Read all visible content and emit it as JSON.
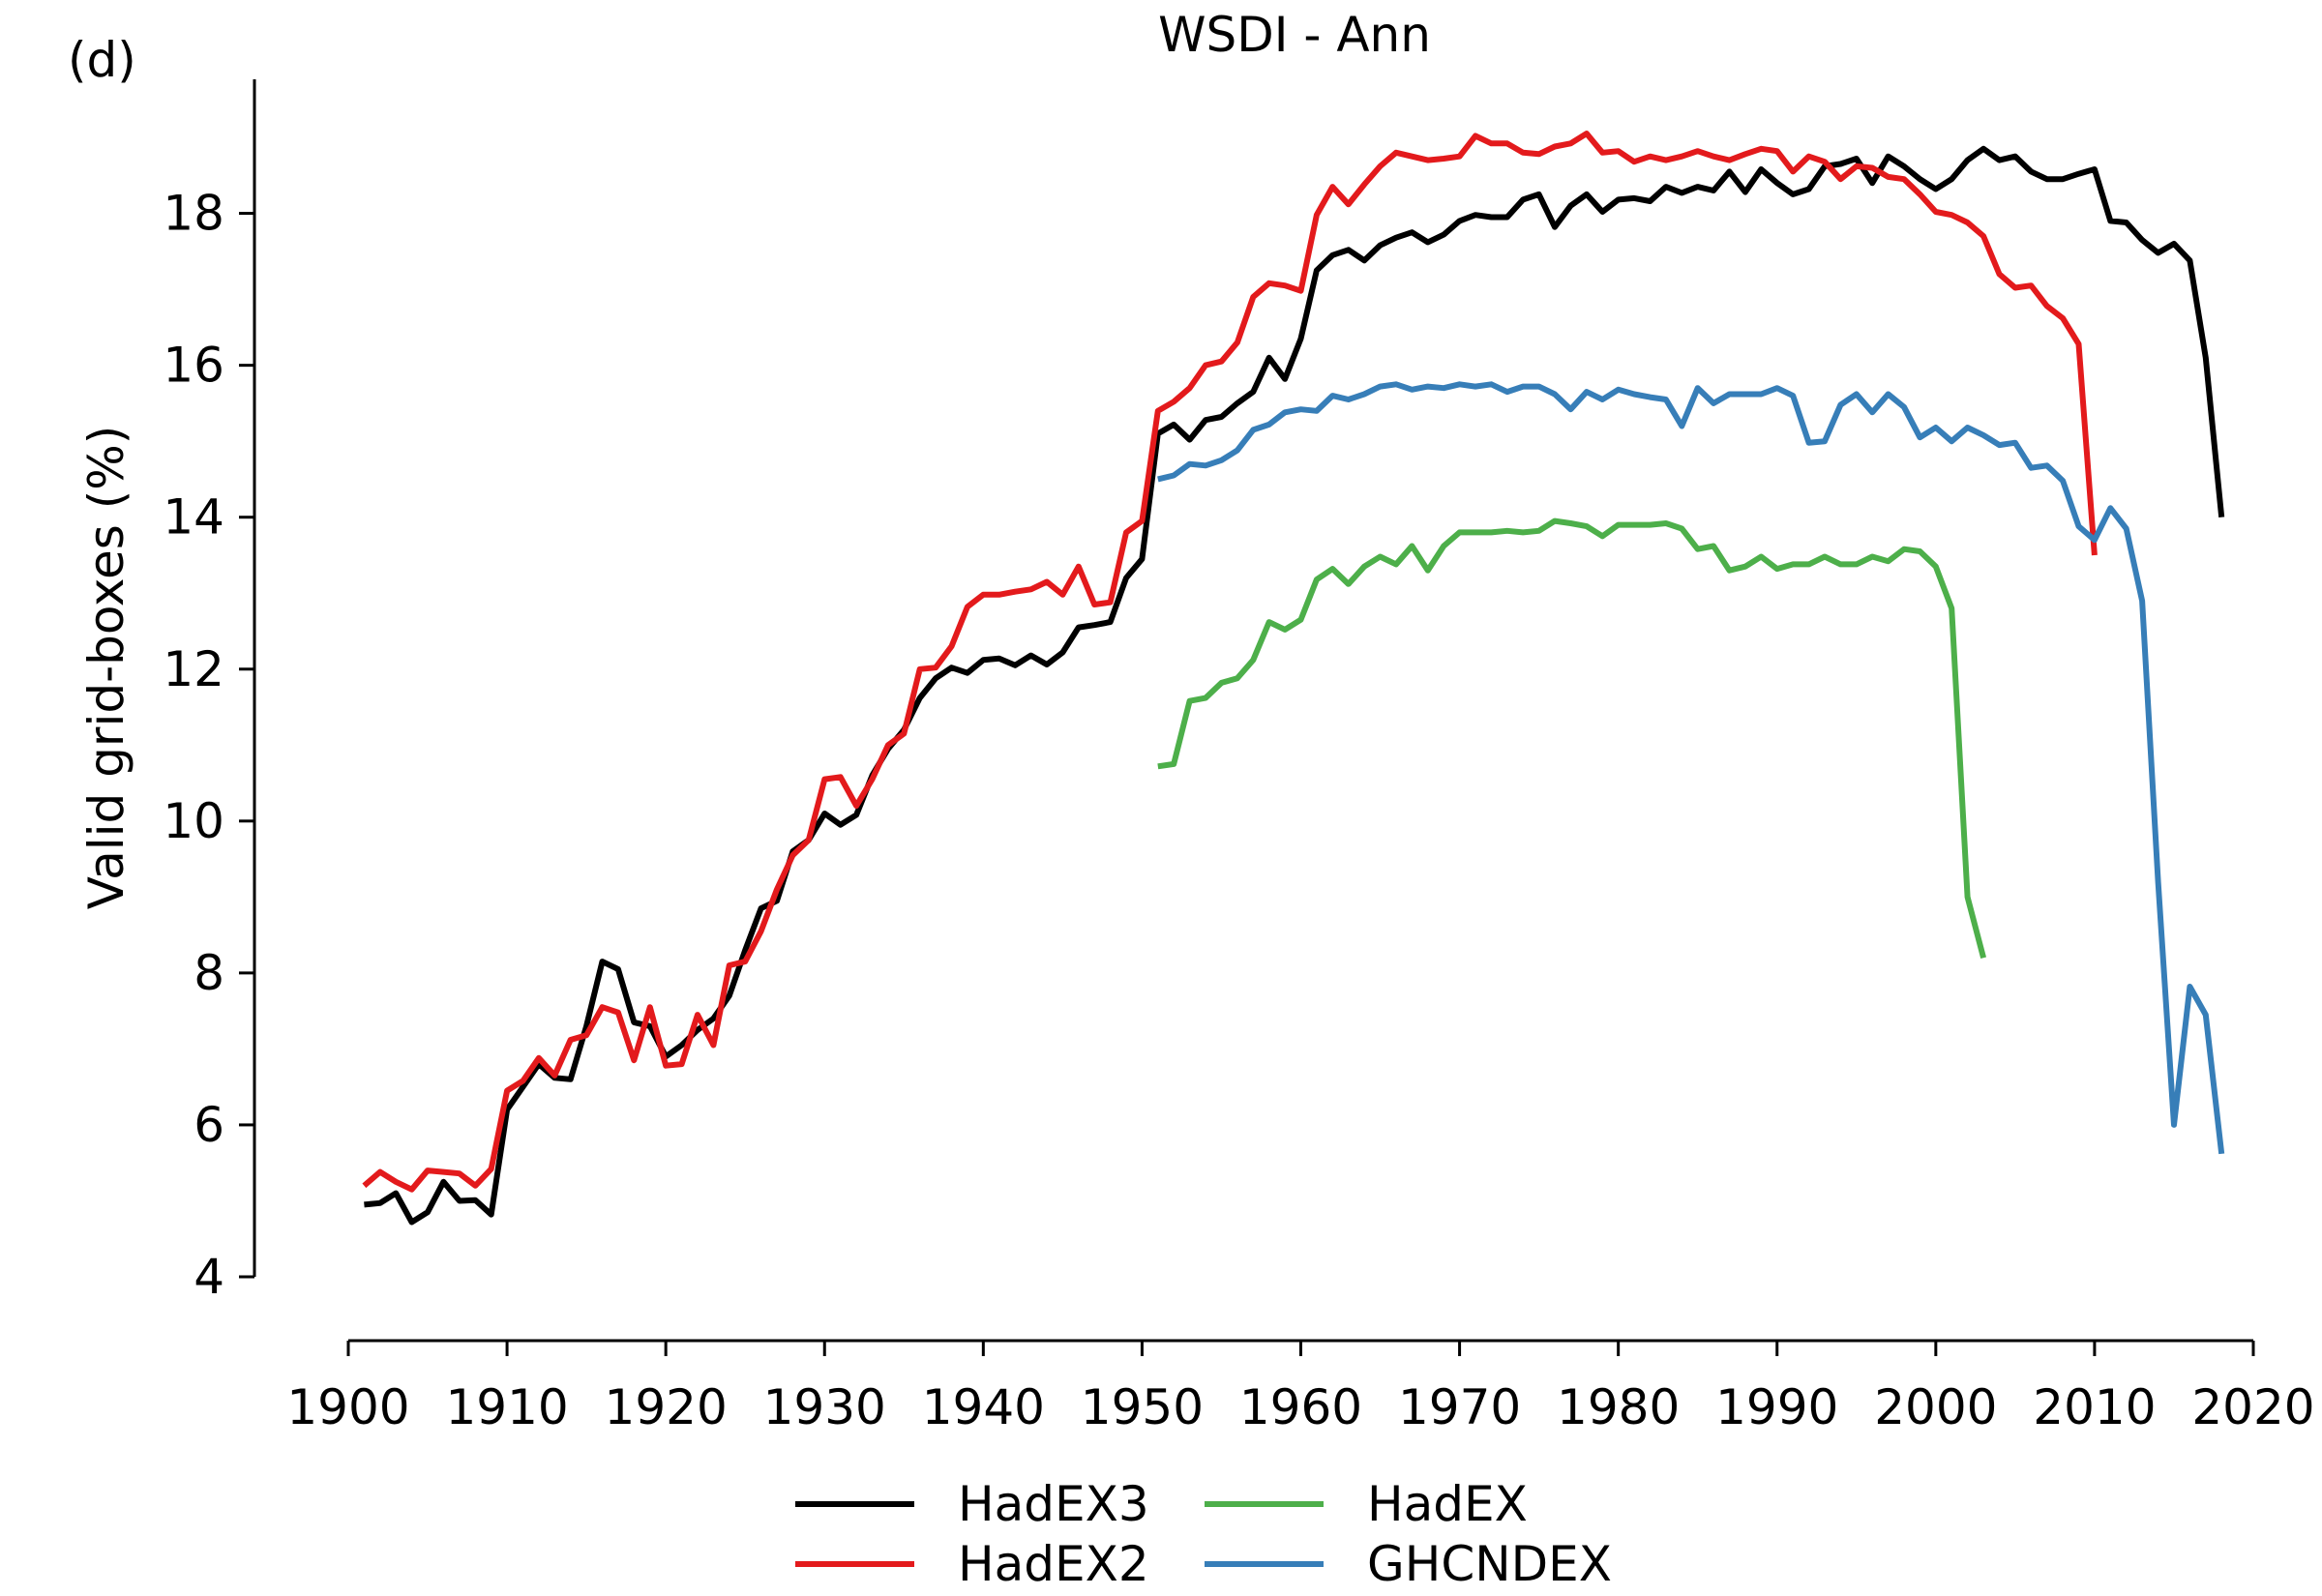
{
  "panel_label": "(d)",
  "chart_data": {
    "type": "line",
    "title": "WSDI - Ann",
    "xlabel": "",
    "ylabel": "Valid grid-boxes (%)",
    "xlim": [
      1900,
      2020
    ],
    "ylim": [
      4,
      19.8
    ],
    "xticks": [
      1900,
      1910,
      1920,
      1930,
      1940,
      1950,
      1960,
      1970,
      1980,
      1990,
      2000,
      2010,
      2020
    ],
    "yticks": [
      4,
      6,
      8,
      10,
      12,
      14,
      16,
      18
    ],
    "grid": false,
    "legend": "bottom-center",
    "series": [
      {
        "name": "HadEX3",
        "color": "#000000",
        "start": 1901,
        "values": [
          4.95,
          4.97,
          5.1,
          4.72,
          4.85,
          5.25,
          5.0,
          5.01,
          4.82,
          6.2,
          6.5,
          6.8,
          6.62,
          6.6,
          7.3,
          8.15,
          8.05,
          7.35,
          7.3,
          6.9,
          7.05,
          7.25,
          7.4,
          7.7,
          8.3,
          8.85,
          8.95,
          9.6,
          9.75,
          10.1,
          9.95,
          10.08,
          10.6,
          10.95,
          11.2,
          11.62,
          11.88,
          12.02,
          11.95,
          12.12,
          12.14,
          12.05,
          12.18,
          12.06,
          12.22,
          12.55,
          12.58,
          12.62,
          13.2,
          13.45,
          15.1,
          15.22,
          15.02,
          15.28,
          15.32,
          15.5,
          15.65,
          16.1,
          15.82,
          16.35,
          17.25,
          17.45,
          17.52,
          17.38,
          17.58,
          17.68,
          17.75,
          17.62,
          17.72,
          17.9,
          17.98,
          17.95,
          17.95,
          18.18,
          18.25,
          17.82,
          18.1,
          18.25,
          18.02,
          18.18,
          18.2,
          18.16,
          18.35,
          18.27,
          18.35,
          18.3,
          18.55,
          18.28,
          18.58,
          18.4,
          18.25,
          18.32,
          18.62,
          18.65,
          18.72,
          18.4,
          18.75,
          18.62,
          18.45,
          18.32,
          18.45,
          18.7,
          18.85,
          18.7,
          18.75,
          18.55,
          18.45,
          18.45,
          18.52,
          18.58,
          17.9,
          17.88,
          17.65,
          17.48,
          17.6,
          17.38,
          16.1,
          14.0
        ]
      },
      {
        "name": "HadEX2",
        "color": "#e31a1c",
        "start": 1901,
        "values": [
          5.2,
          5.38,
          5.25,
          5.15,
          5.4,
          5.38,
          5.36,
          5.2,
          5.42,
          6.45,
          6.58,
          6.88,
          6.65,
          7.12,
          7.18,
          7.55,
          7.48,
          6.85,
          7.55,
          6.78,
          6.8,
          7.45,
          7.05,
          8.1,
          8.15,
          8.55,
          9.1,
          9.55,
          9.75,
          10.55,
          10.58,
          10.2,
          10.55,
          11.0,
          11.15,
          12.0,
          12.02,
          12.3,
          12.82,
          12.98,
          12.98,
          13.02,
          13.05,
          13.15,
          12.98,
          13.35,
          12.85,
          12.88,
          13.8,
          13.95,
          15.4,
          15.52,
          15.7,
          16.0,
          16.05,
          16.3,
          16.9,
          17.08,
          17.05,
          16.98,
          17.98,
          18.35,
          18.12,
          18.38,
          18.62,
          18.8,
          18.75,
          18.7,
          18.72,
          18.75,
          19.02,
          18.92,
          18.92,
          18.8,
          18.78,
          18.88,
          18.92,
          19.05,
          18.8,
          18.82,
          18.68,
          18.75,
          18.7,
          18.75,
          18.82,
          18.75,
          18.7,
          18.78,
          18.85,
          18.82,
          18.55,
          18.75,
          18.68,
          18.45,
          18.62,
          18.6,
          18.48,
          18.45,
          18.25,
          18.02,
          17.98,
          17.88,
          17.7,
          17.2,
          17.02,
          17.05,
          16.78,
          16.62,
          16.28,
          13.5
        ]
      },
      {
        "name": "HadEX",
        "color": "#4daf4a",
        "start": 1951,
        "values": [
          10.72,
          10.75,
          11.58,
          11.62,
          11.82,
          11.88,
          12.12,
          12.62,
          12.52,
          12.65,
          13.18,
          13.32,
          13.12,
          13.35,
          13.48,
          13.38,
          13.62,
          13.3,
          13.62,
          13.8,
          13.8,
          13.8,
          13.82,
          13.8,
          13.82,
          13.95,
          13.92,
          13.88,
          13.75,
          13.9,
          13.9,
          13.9,
          13.92,
          13.85,
          13.58,
          13.62,
          13.3,
          13.35,
          13.48,
          13.32,
          13.38,
          13.38,
          13.48,
          13.38,
          13.38,
          13.48,
          13.42,
          13.58,
          13.55,
          13.35,
          12.8,
          9.0,
          8.2
        ]
      },
      {
        "name": "GHCNDEX",
        "color": "#377eb8",
        "start": 1951,
        "values": [
          14.5,
          14.55,
          14.7,
          14.68,
          14.75,
          14.88,
          15.15,
          15.22,
          15.38,
          15.42,
          15.4,
          15.6,
          15.55,
          15.62,
          15.72,
          15.75,
          15.68,
          15.72,
          15.7,
          15.75,
          15.72,
          15.75,
          15.65,
          15.72,
          15.72,
          15.62,
          15.42,
          15.65,
          15.55,
          15.68,
          15.62,
          15.58,
          15.55,
          15.2,
          15.7,
          15.5,
          15.62,
          15.62,
          15.62,
          15.7,
          15.6,
          14.98,
          15.0,
          15.48,
          15.62,
          15.38,
          15.62,
          15.45,
          15.05,
          15.18,
          15.0,
          15.18,
          15.08,
          14.95,
          14.98,
          14.65,
          14.68,
          14.48,
          13.88,
          13.7,
          14.12,
          13.85,
          12.9,
          9.2,
          6.0,
          7.82,
          7.45,
          5.62
        ]
      }
    ]
  }
}
